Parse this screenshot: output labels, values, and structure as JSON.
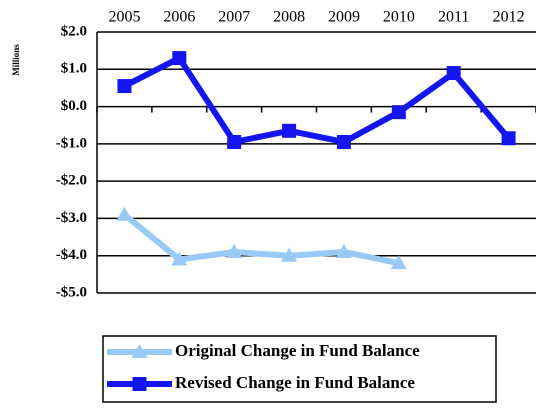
{
  "chart_data": {
    "type": "line",
    "y_axis_label": "Millions",
    "categories": [
      "2005",
      "2006",
      "2007",
      "2008",
      "2009",
      "2010",
      "2011",
      "2012"
    ],
    "series": [
      {
        "name": "Original Change in Fund Balance",
        "color": "#99c9f5",
        "marker": "triangle",
        "values": [
          -2.9,
          -4.1,
          -3.9,
          -4.0,
          -3.9,
          -4.2,
          null,
          null
        ]
      },
      {
        "name": "Revised Change in Fund Balance",
        "color": "#1515f0",
        "marker": "square",
        "values": [
          0.55,
          1.3,
          -0.95,
          -0.65,
          -0.95,
          -0.15,
          0.9,
          -0.85
        ]
      }
    ],
    "ylim": [
      -5,
      2
    ],
    "yticks": [
      {
        "value": 2,
        "label": "$2.0"
      },
      {
        "value": 1,
        "label": "$1.0"
      },
      {
        "value": 0,
        "label": "$0.0"
      },
      {
        "value": -1,
        "label": "-$1.0"
      },
      {
        "value": -2,
        "label": "-$2.0"
      },
      {
        "value": -3,
        "label": "-$3.0"
      },
      {
        "value": -4,
        "label": "-$4.0"
      },
      {
        "value": -5,
        "label": "-$5.0"
      }
    ],
    "grid": true,
    "legend": "bottom"
  }
}
